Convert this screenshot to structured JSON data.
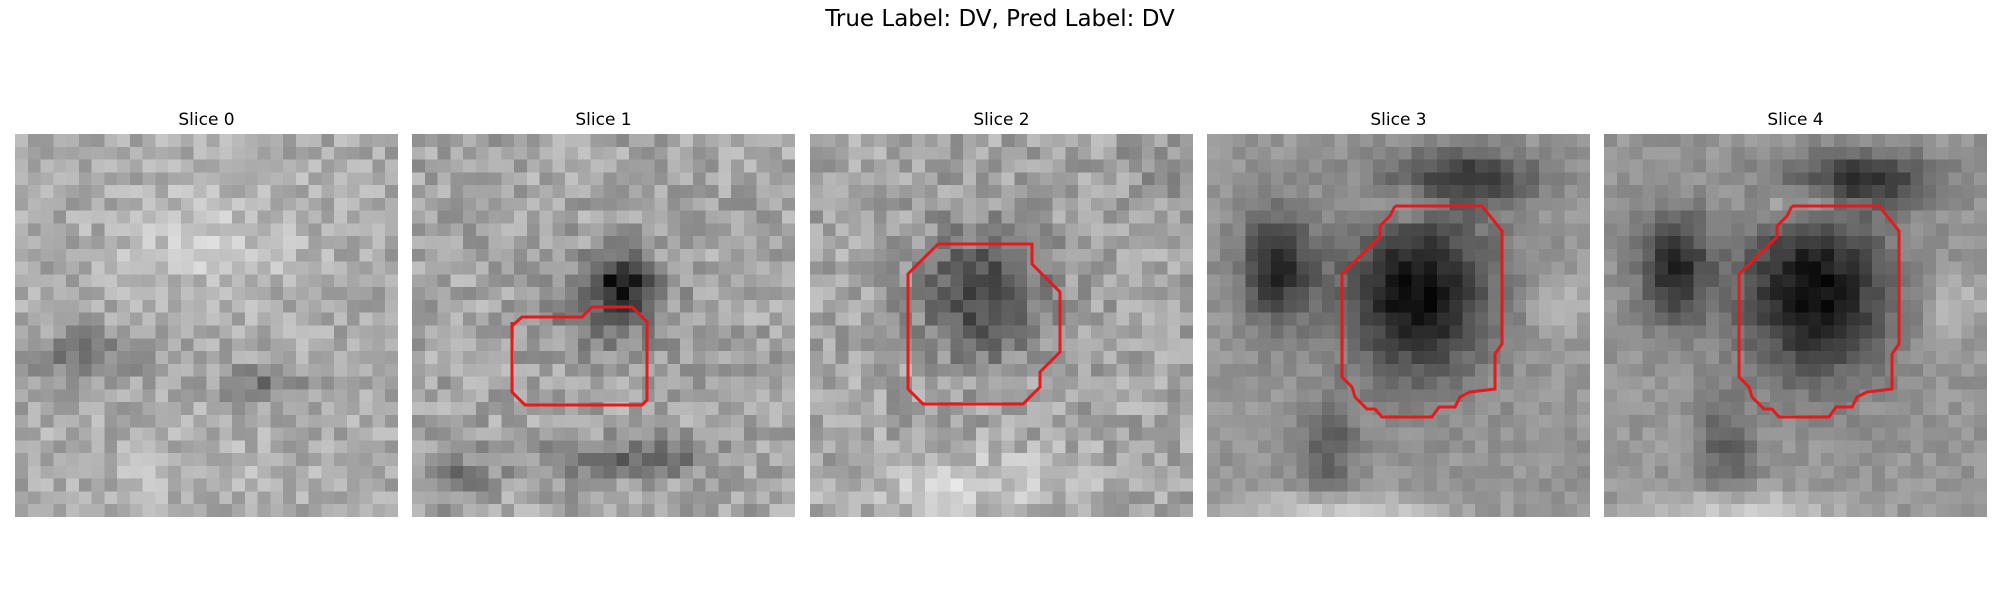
{
  "figure": {
    "title": "True Label: DV, Pred Label: DV",
    "panels": [
      {
        "title": "Slice 0",
        "has_contour": false
      },
      {
        "title": "Slice 1",
        "has_contour": true
      },
      {
        "title": "Slice 2",
        "has_contour": true
      },
      {
        "title": "Slice 3",
        "has_contour": true
      },
      {
        "title": "Slice 4",
        "has_contour": true
      }
    ],
    "contour_color": "#e41a1c"
  }
}
